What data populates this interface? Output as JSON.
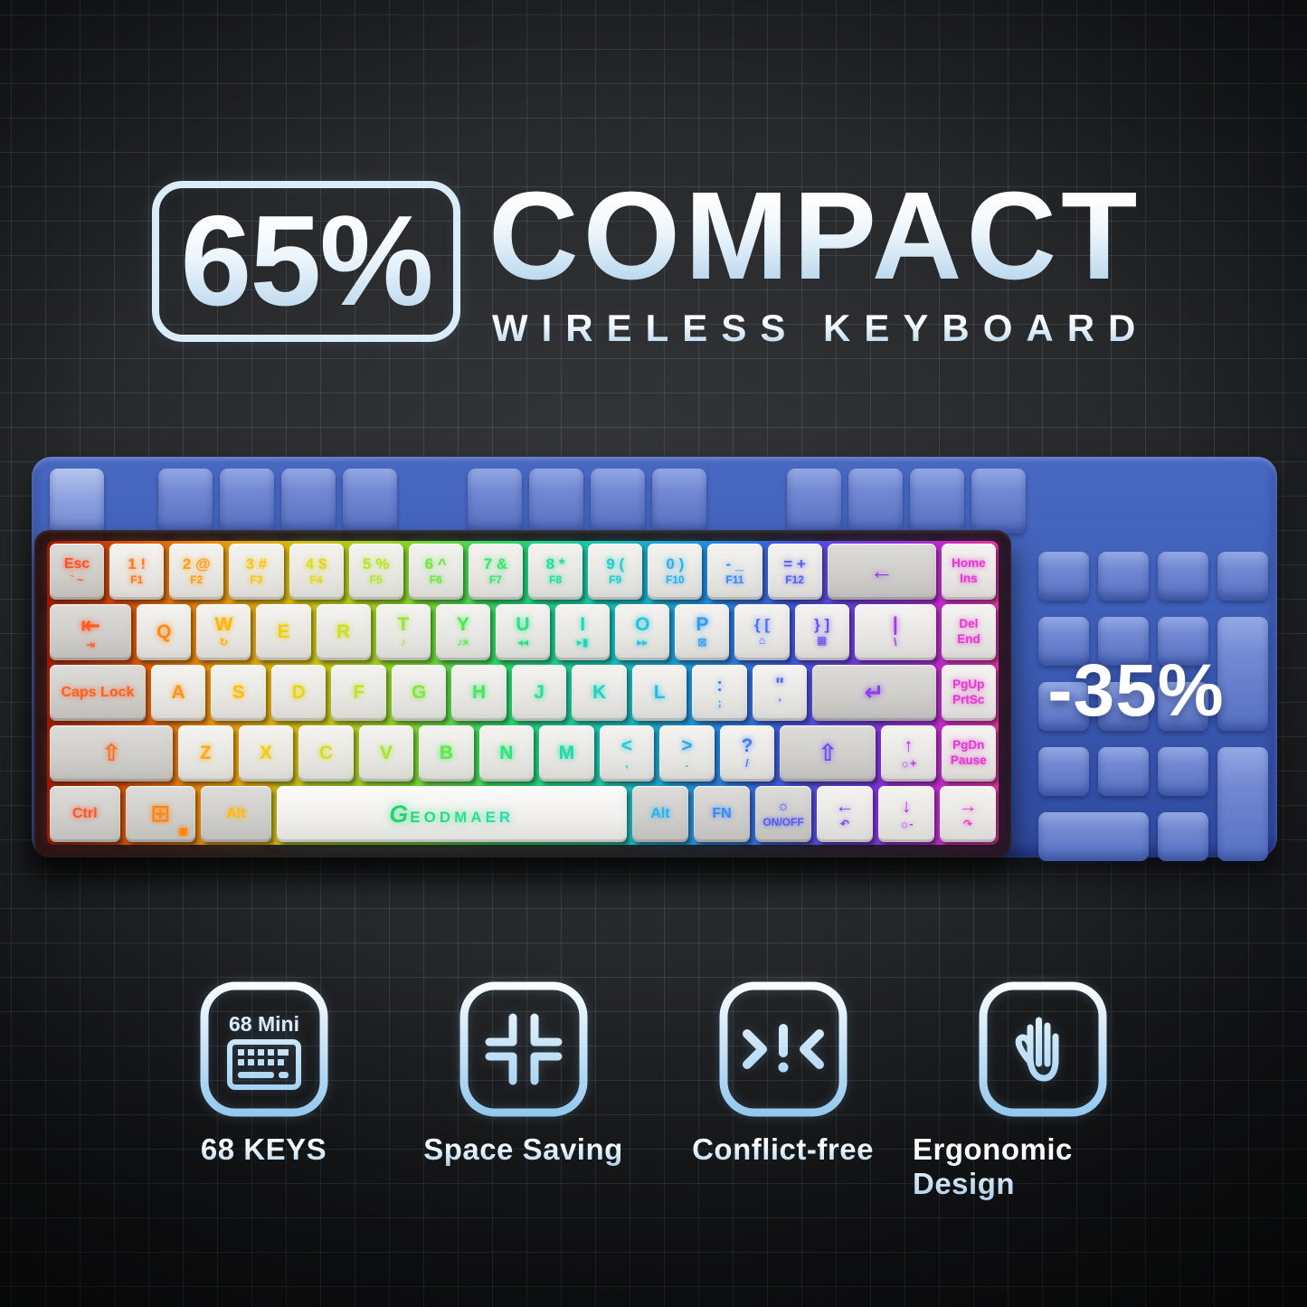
{
  "title": {
    "badge": "65%",
    "main": "COMPACT",
    "sub": "WIRELESS KEYBOARD"
  },
  "discount_label": "-35%",
  "brand": "GEODMAER",
  "colors": {
    "background": "#141517",
    "grid_line": "#a5cdd7",
    "blue_keyboard": "#3c5bb3",
    "title_gradient_bottom": "#a9cde8",
    "brand_green": "#2adf8c",
    "win_dot_orange": "#ff8a10",
    "rgb_palette": [
      [
        0.0,
        "#ff3b2e"
      ],
      [
        0.07,
        "#ff6a1c"
      ],
      [
        0.14,
        "#ff9212"
      ],
      [
        0.21,
        "#ffc20d"
      ],
      [
        0.28,
        "#e0da1e"
      ],
      [
        0.35,
        "#b4e42e"
      ],
      [
        0.42,
        "#5ce84a"
      ],
      [
        0.49,
        "#2ce47e"
      ],
      [
        0.56,
        "#1fd8b4"
      ],
      [
        0.63,
        "#27c2e4"
      ],
      [
        0.7,
        "#3494f4"
      ],
      [
        0.77,
        "#4f62f4"
      ],
      [
        0.84,
        "#7a42ee"
      ],
      [
        0.91,
        "#b434e4"
      ],
      [
        1.0,
        "#ff38c8"
      ]
    ]
  },
  "keyboard": {
    "units_per_row": 16,
    "rows": [
      [
        {
          "t": "Esc",
          "b": "` ~",
          "cls": "mod two"
        },
        {
          "t": "1 !",
          "b": "F1",
          "cls": "two"
        },
        {
          "t": "2 @",
          "b": "F2",
          "cls": "two"
        },
        {
          "t": "3 #",
          "b": "F3",
          "cls": "two"
        },
        {
          "t": "4 $",
          "b": "F4",
          "cls": "two"
        },
        {
          "t": "5 %",
          "b": "F5",
          "cls": "two"
        },
        {
          "t": "6 ^",
          "b": "F6",
          "cls": "two"
        },
        {
          "t": "7 &",
          "b": "F7",
          "cls": "two"
        },
        {
          "t": "8 *",
          "b": "F8",
          "cls": "two"
        },
        {
          "t": "9 (",
          "b": "F9",
          "cls": "two"
        },
        {
          "t": "0 )",
          "b": "F10",
          "cls": "two"
        },
        {
          "t": "- _",
          "b": "F11",
          "cls": "two"
        },
        {
          "t": "= +",
          "b": "F12",
          "cls": "two"
        },
        {
          "t": "←",
          "w": 2,
          "cls": "mod big"
        },
        {
          "t": "Home",
          "b": "Ins",
          "cls": "nav"
        }
      ],
      [
        {
          "t": "⇤",
          "b": "⇥",
          "w": 1.5,
          "cls": "mod big"
        },
        {
          "t": "Q"
        },
        {
          "t": "W",
          "b": "↻"
        },
        {
          "t": "E"
        },
        {
          "t": "R"
        },
        {
          "t": "T",
          "b": "♪"
        },
        {
          "t": "Y",
          "b": "♪×"
        },
        {
          "t": "U",
          "b": "◂◂"
        },
        {
          "t": "I",
          "b": "▸▮"
        },
        {
          "t": "O",
          "b": "▸▸"
        },
        {
          "t": "P",
          "b": "⊠"
        },
        {
          "t": "{ [",
          "b": "⌂",
          "cls": "two"
        },
        {
          "t": "} ]",
          "b": "▦",
          "cls": "two"
        },
        {
          "t": "|",
          "b": "\\",
          "w": 1.5
        },
        {
          "t": "Del",
          "b": "End",
          "cls": "nav"
        }
      ],
      [
        {
          "t": "Caps Lock",
          "w": 1.75,
          "cls": "mod"
        },
        {
          "t": "A"
        },
        {
          "t": "S"
        },
        {
          "t": "D"
        },
        {
          "t": "F"
        },
        {
          "t": "G"
        },
        {
          "t": "H"
        },
        {
          "t": "J"
        },
        {
          "t": "K"
        },
        {
          "t": "L"
        },
        {
          "t": ":",
          "b": ";"
        },
        {
          "t": "\"",
          "b": "'"
        },
        {
          "t": "↵",
          "w": 2.25,
          "cls": "mod big"
        },
        {
          "t": "PgUp",
          "b": "PrtSc",
          "cls": "nav"
        }
      ],
      [
        {
          "t": "⇧",
          "w": 2.25,
          "cls": "mod big"
        },
        {
          "t": "Z"
        },
        {
          "t": "X"
        },
        {
          "t": "C"
        },
        {
          "t": "V"
        },
        {
          "t": "B"
        },
        {
          "t": "N"
        },
        {
          "t": "M"
        },
        {
          "t": "<",
          "b": ","
        },
        {
          "t": ">",
          "b": "."
        },
        {
          "t": "?",
          "b": "/"
        },
        {
          "t": "⇧",
          "w": 1.75,
          "cls": "mod big"
        },
        {
          "t": "↑",
          "b": "☼+"
        },
        {
          "t": "PgDn",
          "b": "Pause",
          "cls": "nav"
        }
      ],
      [
        {
          "t": "Ctrl",
          "w": 1.25,
          "cls": "mod"
        },
        {
          "t": "⊞",
          "w": 1.25,
          "cls": "mod big win"
        },
        {
          "t": "Alt",
          "w": 1.25,
          "cls": "mod"
        },
        {
          "t": "",
          "w": 6.25,
          "cls": "space"
        },
        {
          "t": "Alt",
          "cls": "mod"
        },
        {
          "t": "FN",
          "cls": "mod"
        },
        {
          "t": "☼",
          "b": "ON/OFF",
          "cls": "mod"
        },
        {
          "t": "←",
          "b": "↶"
        },
        {
          "t": "↓",
          "b": "☼-"
        },
        {
          "t": "→",
          "b": "↷"
        }
      ]
    ]
  },
  "features": [
    {
      "icon": "keyboard-68-icon",
      "title": "68 Mini",
      "label": "68 KEYS"
    },
    {
      "icon": "compress-icon",
      "title": "",
      "label": "Space Saving"
    },
    {
      "icon": "conflict-icon",
      "title": "",
      "label": "Conflict-free"
    },
    {
      "icon": "hand-icon",
      "title": "",
      "label": "Ergonomic Design"
    }
  ]
}
